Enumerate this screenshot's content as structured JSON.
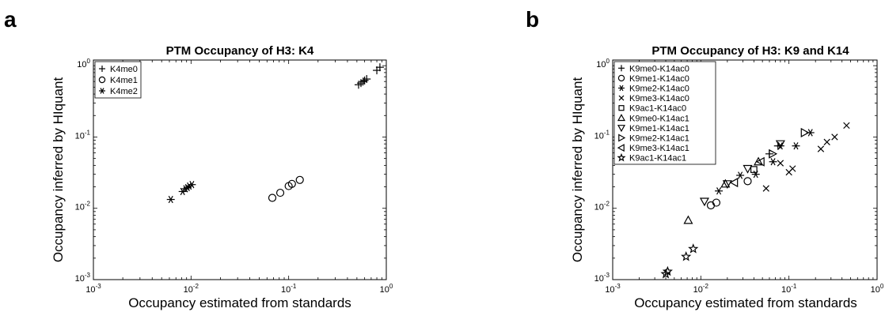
{
  "panels": [
    {
      "letter": "a",
      "title": "PTM Occupancy of H3: K4",
      "xlabel": "Occupancy estimated from standards",
      "ylabel": "Occupancy inferred by HIquant",
      "xticks": [
        {
          "base": "10",
          "exp": "-3"
        },
        {
          "base": "10",
          "exp": "-2"
        },
        {
          "base": "10",
          "exp": "-1"
        },
        {
          "base": "10",
          "exp": "0"
        }
      ],
      "yticks": [
        {
          "base": "10",
          "exp": "-3"
        },
        {
          "base": "10",
          "exp": "-2"
        },
        {
          "base": "10",
          "exp": "-1"
        },
        {
          "base": "10",
          "exp": "0"
        }
      ]
    },
    {
      "letter": "b",
      "title": "PTM Occupancy of H3: K9 and K14",
      "xlabel": "Occupancy estimated from standards",
      "ylabel": "Occupancy inferred by HIquant",
      "xticks": [
        {
          "base": "10",
          "exp": "-3"
        },
        {
          "base": "10",
          "exp": "-2"
        },
        {
          "base": "10",
          "exp": "-1"
        },
        {
          "base": "10",
          "exp": "0"
        }
      ],
      "yticks": [
        {
          "base": "10",
          "exp": "-3"
        },
        {
          "base": "10",
          "exp": "-2"
        },
        {
          "base": "10",
          "exp": "-1"
        },
        {
          "base": "10",
          "exp": "0"
        }
      ]
    }
  ],
  "chart_data": [
    {
      "type": "scatter",
      "title": "PTM Occupancy of H3: K4",
      "xlabel": "Occupancy estimated from standards",
      "ylabel": "Occupancy inferred by HIquant",
      "xscale": "log",
      "yscale": "log",
      "xlim": [
        0.001,
        1
      ],
      "ylim": [
        0.001,
        1.2
      ],
      "grid": false,
      "legend": "top-left",
      "series": [
        {
          "name": "K4me0",
          "marker": "plus",
          "points": [
            [
              0.52,
              0.54
            ],
            [
              0.55,
              0.57
            ],
            [
              0.58,
              0.6
            ],
            [
              0.6,
              0.62
            ],
            [
              0.63,
              0.65
            ],
            [
              0.8,
              0.86
            ],
            [
              0.86,
              0.95
            ]
          ]
        },
        {
          "name": "K4me1",
          "marker": "circle",
          "points": [
            [
              0.068,
              0.014
            ],
            [
              0.082,
              0.0165
            ],
            [
              0.1,
              0.0205
            ],
            [
              0.108,
              0.022
            ],
            [
              0.13,
              0.025
            ]
          ]
        },
        {
          "name": "K4me2",
          "marker": "asterisk",
          "points": [
            [
              0.0062,
              0.0133
            ],
            [
              0.0082,
              0.0172
            ],
            [
              0.0088,
              0.0188
            ],
            [
              0.0092,
              0.0195
            ],
            [
              0.0096,
              0.0205
            ],
            [
              0.0102,
              0.0215
            ]
          ]
        }
      ]
    },
    {
      "type": "scatter",
      "title": "PTM Occupancy of H3: K9 and K14",
      "xlabel": "Occupancy estimated from standards",
      "ylabel": "Occupancy inferred by HIquant",
      "xscale": "log",
      "yscale": "log",
      "xlim": [
        0.001,
        1
      ],
      "ylim": [
        0.001,
        1.2
      ],
      "grid": false,
      "legend": "top-left",
      "series": [
        {
          "name": "K9me0-K14ac0",
          "marker": "plus",
          "points": [
            [
              0.06,
              0.058
            ],
            [
              0.075,
              0.075
            ]
          ]
        },
        {
          "name": "K9me1-K14ac0",
          "marker": "circle",
          "points": [
            [
              0.013,
              0.011
            ],
            [
              0.015,
              0.012
            ],
            [
              0.034,
              0.024
            ]
          ]
        },
        {
          "name": "K9me2-K14ac0",
          "marker": "asterisk",
          "points": [
            [
              0.016,
              0.0175
            ],
            [
              0.028,
              0.029
            ],
            [
              0.042,
              0.03
            ],
            [
              0.066,
              0.045
            ],
            [
              0.08,
              0.075
            ],
            [
              0.12,
              0.075
            ],
            [
              0.175,
              0.115
            ]
          ]
        },
        {
          "name": "K9me3-K14ac0",
          "marker": "x",
          "points": [
            [
              0.055,
              0.019
            ],
            [
              0.08,
              0.043
            ],
            [
              0.1,
              0.032
            ],
            [
              0.11,
              0.036
            ],
            [
              0.23,
              0.068
            ],
            [
              0.27,
              0.085
            ],
            [
              0.33,
              0.1
            ],
            [
              0.45,
              0.145
            ]
          ]
        },
        {
          "name": "K9ac1-K14ac0",
          "marker": "square",
          "points": [
            [
              0.04,
              0.035
            ]
          ]
        },
        {
          "name": "K9me0-K14ac1",
          "marker": "triangle-up",
          "points": [
            [
              0.0072,
              0.0068
            ],
            [
              0.019,
              0.022
            ],
            [
              0.045,
              0.045
            ]
          ]
        },
        {
          "name": "K9me1-K14ac1",
          "marker": "triangle-down",
          "points": [
            [
              0.011,
              0.0125
            ],
            [
              0.02,
              0.022
            ],
            [
              0.034,
              0.036
            ],
            [
              0.08,
              0.08
            ]
          ]
        },
        {
          "name": "K9me2-K14ac1",
          "marker": "triangle-right",
          "points": [
            [
              0.065,
              0.058
            ],
            [
              0.15,
              0.115
            ]
          ]
        },
        {
          "name": "K9me3-K14ac1",
          "marker": "triangle-left",
          "points": [
            [
              0.024,
              0.023
            ],
            [
              0.048,
              0.045
            ]
          ]
        },
        {
          "name": "K9ac1-K14ac1",
          "marker": "star",
          "points": [
            [
              0.004,
              0.0012
            ],
            [
              0.0042,
              0.0013
            ],
            [
              0.0068,
              0.0021
            ],
            [
              0.0082,
              0.0027
            ]
          ]
        }
      ]
    }
  ]
}
